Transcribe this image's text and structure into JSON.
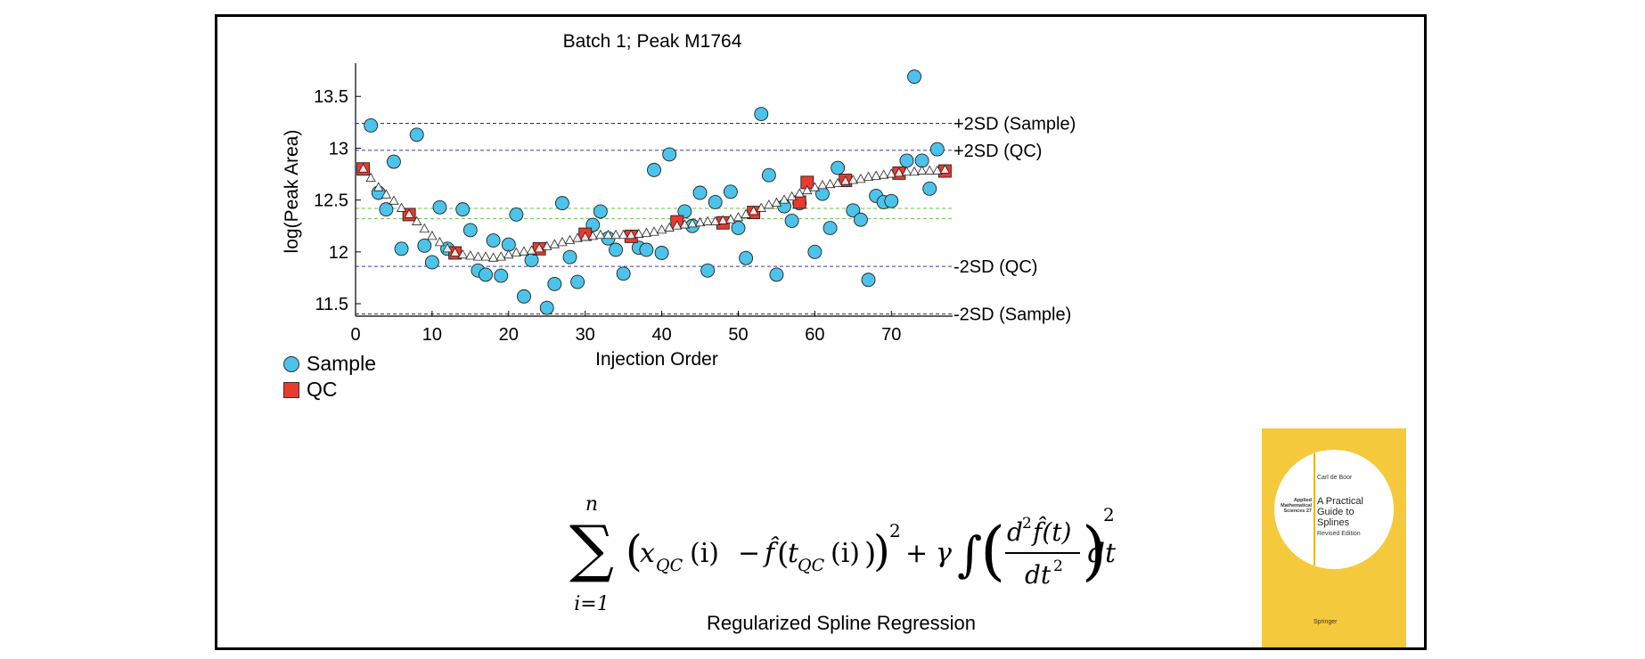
{
  "chart_data": {
    "type": "scatter",
    "title": "Batch 1; Peak M1764",
    "xlabel": "Injection Order",
    "ylabel": "log(Peak Area)",
    "xlim": [
      0,
      78
    ],
    "ylim": [
      11.38,
      13.82
    ],
    "xticks": [
      "0",
      "10",
      "20",
      "30",
      "40",
      "50",
      "60",
      "70"
    ],
    "yticks": [
      "11.5",
      "12",
      "12.5",
      "13",
      "13.5"
    ],
    "grid": false,
    "legend_position": "bottom-left",
    "series": [
      {
        "name": "Sample",
        "marker": "circle",
        "color": "#4cc3ea",
        "x": [
          2,
          3,
          4,
          5,
          6,
          8,
          9,
          10,
          11,
          12,
          14,
          15,
          16,
          17,
          18,
          19,
          20,
          21,
          22,
          23,
          25,
          26,
          27,
          28,
          29,
          31,
          32,
          33,
          34,
          35,
          37,
          38,
          39,
          40,
          41,
          43,
          44,
          45,
          46,
          47,
          49,
          50,
          51,
          53,
          54,
          55,
          56,
          57,
          58,
          60,
          61,
          62,
          63,
          65,
          66,
          67,
          68,
          69,
          70,
          72,
          73,
          74,
          75,
          76
        ],
        "y": [
          13.22,
          12.57,
          12.41,
          12.87,
          12.03,
          13.13,
          12.06,
          11.9,
          12.43,
          12.03,
          12.41,
          12.21,
          11.82,
          11.78,
          12.11,
          11.77,
          12.07,
          12.36,
          11.57,
          11.92,
          11.46,
          11.69,
          12.47,
          11.95,
          11.71,
          12.26,
          12.39,
          12.13,
          12.02,
          11.79,
          12.04,
          12.02,
          12.79,
          11.99,
          12.94,
          12.39,
          12.25,
          12.57,
          11.82,
          12.48,
          12.58,
          12.23,
          11.94,
          13.33,
          12.74,
          11.78,
          12.44,
          12.3,
          12.47,
          12.0,
          12.56,
          12.23,
          12.81,
          12.4,
          12.31,
          11.73,
          12.54,
          12.48,
          12.49,
          12.88,
          13.69,
          12.88,
          12.61,
          12.99
        ]
      },
      {
        "name": "QC",
        "marker": "square",
        "color": "#e83a2f",
        "x": [
          1,
          7,
          13,
          24,
          30,
          36,
          42,
          48,
          52,
          58,
          59,
          64,
          71,
          77
        ],
        "y": [
          12.8,
          12.36,
          11.99,
          12.03,
          12.17,
          12.15,
          12.29,
          12.28,
          12.38,
          12.48,
          12.67,
          12.69,
          12.76,
          12.78
        ]
      },
      {
        "marker": "triangle",
        "color": "#ffffff",
        "x": [
          1,
          2,
          3,
          4,
          5,
          6,
          7,
          8,
          9,
          10,
          11,
          12,
          13,
          14,
          15,
          16,
          17,
          18,
          19,
          20,
          21,
          22,
          23,
          24,
          25,
          26,
          27,
          28,
          29,
          30,
          31,
          32,
          33,
          34,
          35,
          36,
          37,
          38,
          39,
          40,
          41,
          42,
          43,
          44,
          45,
          46,
          47,
          48,
          49,
          50,
          51,
          52,
          53,
          54,
          55,
          56,
          57,
          58,
          59,
          60,
          61,
          62,
          63,
          64,
          65,
          66,
          67,
          68,
          69,
          70,
          71,
          72,
          73,
          74,
          75,
          76,
          77
        ],
        "y": [
          12.8,
          12.71,
          12.62,
          12.55,
          12.49,
          12.42,
          12.36,
          12.29,
          12.22,
          12.15,
          12.09,
          12.03,
          11.99,
          11.97,
          11.96,
          11.95,
          11.95,
          11.94,
          11.95,
          11.97,
          11.99,
          12.0,
          12.01,
          12.03,
          12.05,
          12.07,
          12.09,
          12.11,
          12.13,
          12.14,
          12.15,
          12.16,
          12.16,
          12.16,
          12.16,
          12.16,
          12.17,
          12.18,
          12.19,
          12.21,
          12.23,
          12.25,
          12.26,
          12.27,
          12.28,
          12.29,
          12.29,
          12.3,
          12.31,
          12.33,
          12.36,
          12.39,
          12.42,
          12.45,
          12.47,
          12.5,
          12.53,
          12.56,
          12.59,
          12.62,
          12.64,
          12.65,
          12.66,
          12.68,
          12.69,
          12.7,
          12.72,
          12.73,
          12.74,
          12.75,
          12.76,
          12.77,
          12.77,
          12.78,
          12.78,
          12.78,
          12.79
        ]
      }
    ],
    "reference_lines": [
      {
        "label": "+2SD (Sample)",
        "y": 13.24,
        "color": "#333333"
      },
      {
        "label": "+2SD (QC)",
        "y": 12.98,
        "color": "#3a3ab8"
      },
      {
        "label": "",
        "y": 12.42,
        "color": "#6bc04a"
      },
      {
        "label": "",
        "y": 12.32,
        "color": "#6bc04a"
      },
      {
        "label": "-2SD (QC)",
        "y": 11.86,
        "color": "#3a3ab8"
      },
      {
        "label": "-2SD (Sample)",
        "y": 11.4,
        "color": "#333333"
      }
    ]
  },
  "legend": {
    "sample_label": "Sample",
    "qc_label": "QC"
  },
  "formula": {
    "sum_upper": "n",
    "sum_lower": "i=1",
    "x_symbol": "x",
    "qc_sub": "QC",
    "index": "(i)",
    "minus": "−",
    "f_hat": "f̂",
    "t_symbol": "t",
    "square": "2",
    "plus": "+",
    "gamma": "γ",
    "integral": "∫",
    "numerator": "d",
    "f_of_t": "f̂(t)",
    "denominator": "dt",
    "dt": "dt",
    "caption": "Regularized Spline Regression"
  },
  "book": {
    "author": "Carl de Boor",
    "series": "Applied Mathematical Sciences 27",
    "title": "A Practical Guide to Splines",
    "edition": "Revised Edition",
    "publisher": "Springer",
    "cover_color": "#f4c93c"
  }
}
